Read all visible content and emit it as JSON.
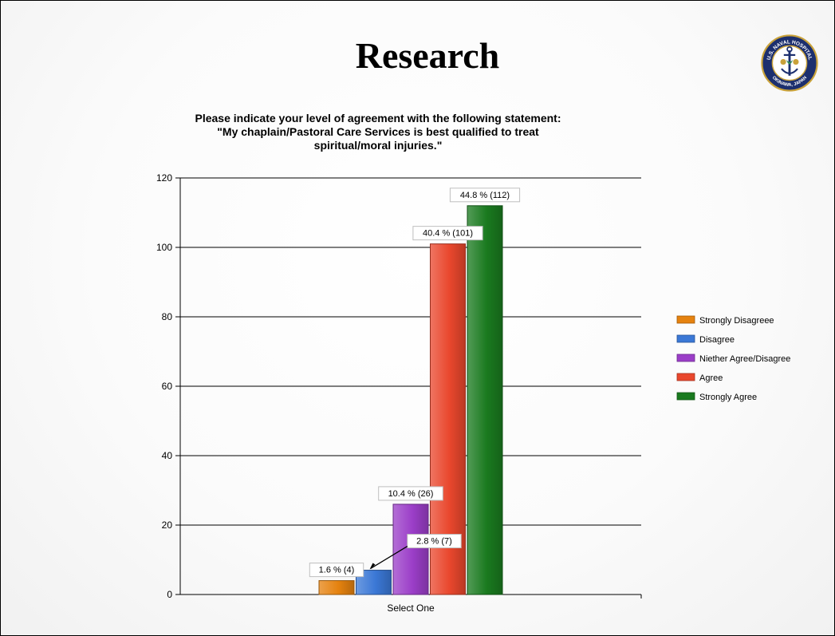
{
  "slide": {
    "title": "Research",
    "logo": {
      "icon": "naval-hospital-seal-icon",
      "top_text": "U.S. NAVAL HOSPITAL",
      "bottom_text": "OKINAWA, JAPAN"
    }
  },
  "chart_data": {
    "type": "bar",
    "title_lines": [
      "Please indicate your level of agreement with the following statement:",
      "\"My chaplain/Pastoral Care Services is best qualified to treat",
      "spiritual/moral injuries.\""
    ],
    "categories": [
      "Select One"
    ],
    "ylim": [
      0,
      120
    ],
    "yticks": [
      0,
      20,
      40,
      60,
      80,
      100,
      120
    ],
    "grid": true,
    "legend_position": "right",
    "series": [
      {
        "name": "Strongly Disagreee",
        "values": [
          4
        ],
        "label": "1.6 % (4)",
        "color": "#e5820f"
      },
      {
        "name": "Disagree",
        "values": [
          7
        ],
        "label": "2.8 % (7)",
        "color": "#3b78d6"
      },
      {
        "name": "Niether Agree/Disagree",
        "values": [
          26
        ],
        "label": "10.4 % (26)",
        "color": "#9b3ec8"
      },
      {
        "name": "Agree",
        "values": [
          101
        ],
        "label": "40.4 % (101)",
        "color": "#e9472d"
      },
      {
        "name": "Strongly Agree",
        "values": [
          112
        ],
        "label": "44.8 % (112)",
        "color": "#1a7a1f"
      }
    ]
  }
}
